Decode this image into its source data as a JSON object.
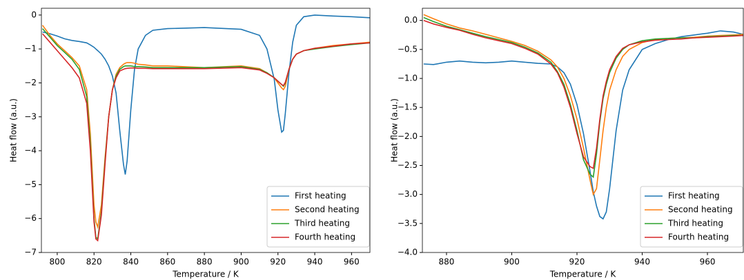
{
  "chart_data": [
    {
      "type": "line",
      "xlabel": "Temperature / K",
      "ylabel": "Heat flow (a.u.)",
      "x": [
        792,
        796,
        800,
        804,
        808,
        812,
        816,
        818,
        820,
        821,
        822,
        824,
        826,
        828,
        830,
        832,
        834,
        836,
        837,
        838,
        840,
        842,
        844,
        848,
        852,
        860,
        880,
        900,
        910,
        914,
        918,
        920,
        922,
        923,
        924,
        926,
        928,
        930,
        934,
        940,
        950,
        960,
        970
      ],
      "series": [
        {
          "name": "First heating",
          "color": "#1f77b4",
          "values": [
            -0.5,
            -0.55,
            -0.62,
            -0.7,
            -0.75,
            -0.78,
            -0.82,
            -0.88,
            -0.95,
            -1.0,
            -1.05,
            -1.15,
            -1.3,
            -1.5,
            -1.8,
            -2.3,
            -3.4,
            -4.4,
            -4.7,
            -4.3,
            -2.8,
            -1.6,
            -1.0,
            -0.6,
            -0.45,
            -0.4,
            -0.37,
            -0.42,
            -0.6,
            -1.0,
            -1.9,
            -2.8,
            -3.45,
            -3.4,
            -2.9,
            -1.7,
            -0.8,
            -0.3,
            -0.05,
            0,
            -0.03,
            -0.05,
            -0.08
          ]
        },
        {
          "name": "Second heating",
          "color": "#ff7f0e",
          "values": [
            -0.3,
            -0.6,
            -0.85,
            -1.05,
            -1.25,
            -1.5,
            -2.2,
            -3.5,
            -5.6,
            -6.1,
            -6.25,
            -5.6,
            -4.2,
            -3.0,
            -2.2,
            -1.75,
            -1.55,
            -1.45,
            -1.42,
            -1.4,
            -1.4,
            -1.42,
            -1.45,
            -1.47,
            -1.5,
            -1.5,
            -1.55,
            -1.5,
            -1.58,
            -1.7,
            -1.85,
            -2.0,
            -2.15,
            -2.2,
            -2.1,
            -1.6,
            -1.3,
            -1.15,
            -1.05,
            -0.98,
            -0.9,
            -0.85,
            -0.8
          ]
        },
        {
          "name": "Third heating",
          "color": "#2ca02c",
          "values": [
            -0.4,
            -0.65,
            -0.9,
            -1.1,
            -1.3,
            -1.6,
            -2.4,
            -3.8,
            -6.0,
            -6.55,
            -6.6,
            -5.8,
            -4.3,
            -3.0,
            -2.2,
            -1.8,
            -1.6,
            -1.52,
            -1.5,
            -1.5,
            -1.5,
            -1.52,
            -1.52,
            -1.53,
            -1.55,
            -1.55,
            -1.55,
            -1.52,
            -1.6,
            -1.7,
            -1.85,
            -1.95,
            -2.05,
            -2.1,
            -2.0,
            -1.6,
            -1.3,
            -1.15,
            -1.05,
            -1.0,
            -0.93,
            -0.87,
            -0.82
          ]
        },
        {
          "name": "Fourth heating",
          "color": "#d62728",
          "values": [
            -0.55,
            -0.8,
            -1.05,
            -1.3,
            -1.55,
            -1.85,
            -2.6,
            -4.0,
            -6.1,
            -6.6,
            -6.65,
            -5.9,
            -4.4,
            -3.0,
            -2.2,
            -1.85,
            -1.65,
            -1.6,
            -1.58,
            -1.57,
            -1.56,
            -1.56,
            -1.57,
            -1.57,
            -1.58,
            -1.58,
            -1.58,
            -1.55,
            -1.62,
            -1.72,
            -1.85,
            -1.95,
            -2.05,
            -2.08,
            -1.98,
            -1.6,
            -1.3,
            -1.15,
            -1.05,
            -0.98,
            -0.92,
            -0.85,
            -0.82
          ]
        }
      ],
      "xlim": [
        791.4,
        970
      ],
      "ylim": [
        -7,
        0.2
      ],
      "xticks": [
        800,
        820,
        840,
        860,
        880,
        900,
        920,
        940,
        960
      ],
      "yticks": [
        0,
        {
          "value": -1,
          "label": "−1"
        },
        {
          "value": -2,
          "label": "−2"
        },
        {
          "value": -3,
          "label": "−3"
        },
        {
          "value": -4,
          "label": "−4"
        },
        {
          "value": -5,
          "label": "−5"
        },
        {
          "value": -6,
          "label": "−6"
        },
        {
          "value": -7,
          "label": "−7"
        }
      ],
      "legend": "lower right"
    },
    {
      "type": "line",
      "xlabel": "Temperature / K",
      "ylabel": "Heat flow (a.u.)",
      "x": [
        873,
        876,
        880,
        884,
        888,
        892,
        896,
        900,
        904,
        908,
        912,
        914,
        916,
        918,
        920,
        922,
        924,
        925,
        926,
        927,
        928,
        929,
        930,
        932,
        934,
        936,
        940,
        944,
        948,
        952,
        956,
        960,
        964,
        968,
        971
      ],
      "series": [
        {
          "name": "First heating",
          "color": "#1f77b4",
          "values": [
            -0.75,
            -0.76,
            -0.72,
            -0.7,
            -0.72,
            -0.73,
            -0.72,
            -0.7,
            -0.72,
            -0.74,
            -0.75,
            -0.8,
            -0.9,
            -1.1,
            -1.45,
            -1.95,
            -2.6,
            -2.95,
            -3.2,
            -3.38,
            -3.42,
            -3.3,
            -2.9,
            -1.9,
            -1.2,
            -0.85,
            -0.5,
            -0.4,
            -0.33,
            -0.28,
            -0.25,
            -0.22,
            -0.18,
            -0.2,
            -0.24
          ]
        },
        {
          "name": "Second heating",
          "color": "#ff7f0e",
          "values": [
            0.1,
            0.03,
            -0.06,
            -0.13,
            -0.18,
            -0.24,
            -0.3,
            -0.36,
            -0.43,
            -0.53,
            -0.68,
            -0.8,
            -1.0,
            -1.3,
            -1.7,
            -2.2,
            -2.75,
            -3.0,
            -2.9,
            -2.4,
            -1.9,
            -1.5,
            -1.2,
            -0.85,
            -0.62,
            -0.5,
            -0.38,
            -0.33,
            -0.31,
            -0.3,
            -0.29,
            -0.27,
            -0.26,
            -0.25,
            -0.24
          ]
        },
        {
          "name": "Third heating",
          "color": "#2ca02c",
          "values": [
            0.05,
            -0.02,
            -0.1,
            -0.16,
            -0.22,
            -0.28,
            -0.33,
            -0.38,
            -0.46,
            -0.56,
            -0.72,
            -0.88,
            -1.1,
            -1.45,
            -1.9,
            -2.4,
            -2.65,
            -2.7,
            -2.3,
            -1.75,
            -1.35,
            -1.1,
            -0.9,
            -0.65,
            -0.5,
            -0.42,
            -0.35,
            -0.32,
            -0.31,
            -0.3,
            -0.3,
            -0.28,
            -0.27,
            -0.26,
            -0.26
          ]
        },
        {
          "name": "Fourth heating",
          "color": "#d62728",
          "values": [
            0.0,
            -0.06,
            -0.12,
            -0.17,
            -0.24,
            -0.3,
            -0.35,
            -0.4,
            -0.48,
            -0.58,
            -0.75,
            -0.9,
            -1.15,
            -1.5,
            -1.95,
            -2.35,
            -2.52,
            -2.55,
            -2.2,
            -1.7,
            -1.3,
            -1.05,
            -0.85,
            -0.62,
            -0.48,
            -0.42,
            -0.37,
            -0.34,
            -0.33,
            -0.32,
            -0.3,
            -0.29,
            -0.28,
            -0.27,
            -0.26
          ]
        }
      ],
      "xlim": [
        872.6,
        971
      ],
      "ylim": [
        -4,
        0.21
      ],
      "xticks": [
        880,
        900,
        920,
        940,
        960
      ],
      "yticks": [
        {
          "value": 0,
          "label": "0.0"
        },
        {
          "value": -0.5,
          "label": "−0.5"
        },
        {
          "value": -1,
          "label": "−1.0"
        },
        {
          "value": -1.5,
          "label": "−1.5"
        },
        {
          "value": -2,
          "label": "−2.0"
        },
        {
          "value": -2.5,
          "label": "−2.5"
        },
        {
          "value": -3,
          "label": "−3.0"
        },
        {
          "value": -3.5,
          "label": "−3.5"
        },
        {
          "value": -4,
          "label": "−4.0"
        }
      ],
      "legend": "lower right"
    }
  ]
}
